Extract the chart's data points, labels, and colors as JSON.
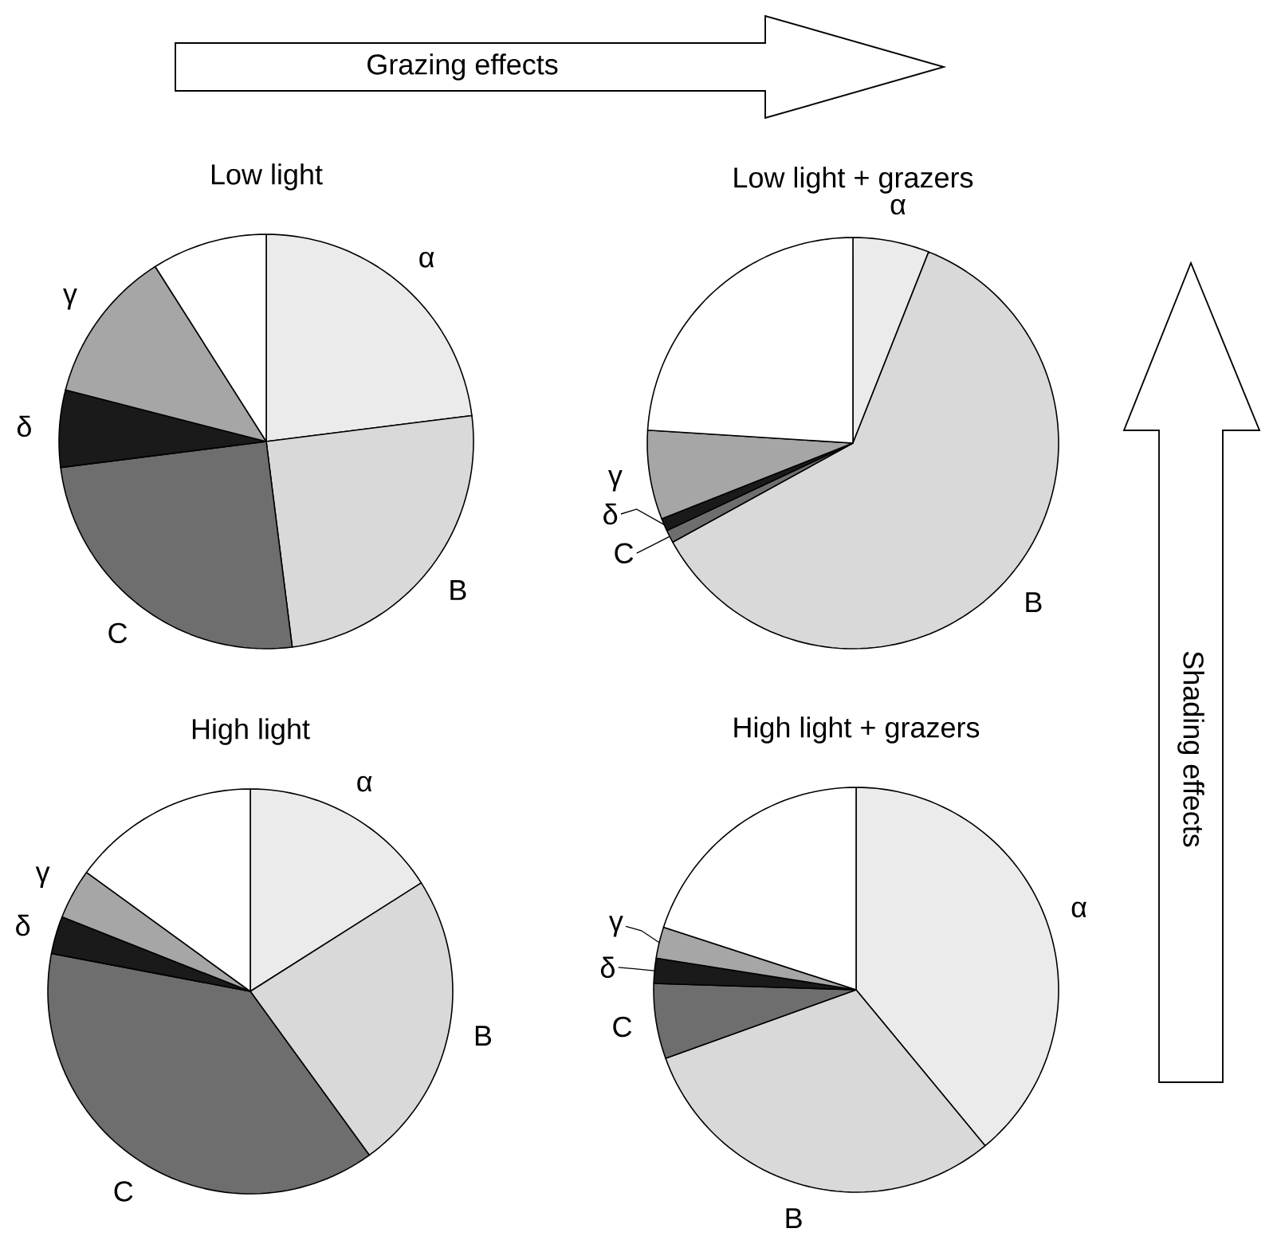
{
  "chart_data": [
    {
      "type": "pie",
      "title": "Low light",
      "categories": [
        "α",
        "B",
        "C",
        "δ",
        "γ",
        null
      ],
      "values": [
        23,
        25,
        25,
        6,
        12,
        9
      ],
      "colors": [
        "#ebebeb",
        "#d9d9d9",
        "#6e6e6e",
        "#1a1a1a",
        "#a6a6a6",
        "#ffffff"
      ],
      "annotations": [
        "Grazing effects",
        "Shading effects"
      ]
    },
    {
      "type": "pie",
      "title": "Low light + grazers",
      "categories": [
        "α",
        "B",
        "C",
        "δ",
        "γ",
        null
      ],
      "values": [
        6,
        61,
        1,
        1,
        7,
        24
      ],
      "colors": [
        "#ebebeb",
        "#d9d9d9",
        "#6e6e6e",
        "#1a1a1a",
        "#a6a6a6",
        "#ffffff"
      ]
    },
    {
      "type": "pie",
      "title": "High light",
      "categories": [
        "α",
        "B",
        "C",
        "δ",
        "γ",
        null
      ],
      "values": [
        16,
        24,
        38,
        3,
        4,
        15
      ],
      "colors": [
        "#ebebeb",
        "#d9d9d9",
        "#6e6e6e",
        "#1a1a1a",
        "#a6a6a6",
        "#ffffff"
      ]
    },
    {
      "type": "pie",
      "title": "High light + grazers",
      "categories": [
        "α",
        "B",
        "C",
        "δ",
        "γ",
        null
      ],
      "values": [
        39,
        30.5,
        6,
        2,
        2.5,
        20
      ],
      "colors": [
        "#ebebeb",
        "#d9d9d9",
        "#6e6e6e",
        "#1a1a1a",
        "#a6a6a6",
        "#ffffff"
      ]
    }
  ]
}
